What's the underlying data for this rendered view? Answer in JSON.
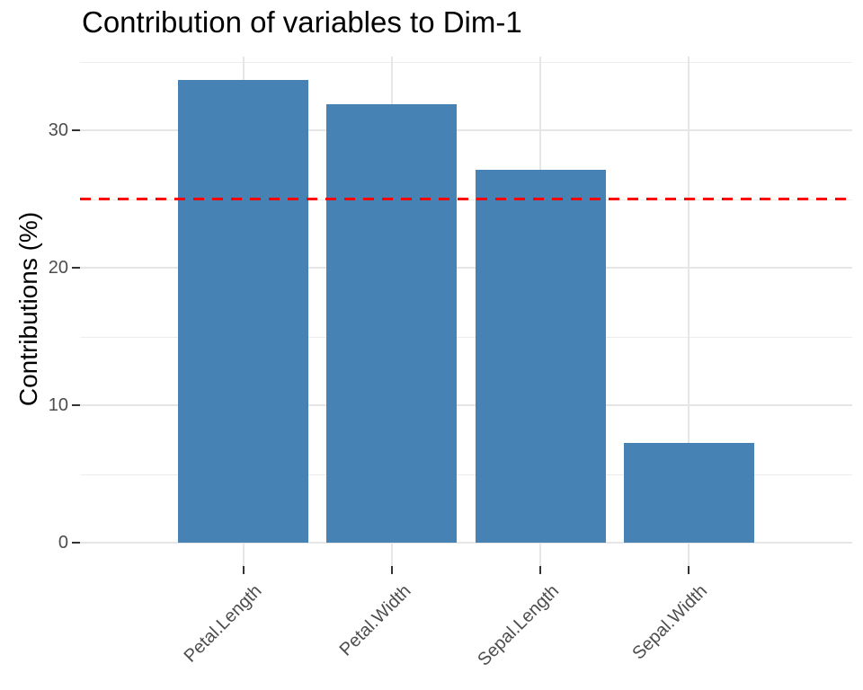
{
  "chart_data": {
    "type": "bar",
    "title": "Contribution of variables to Dim-1",
    "xlabel": "",
    "ylabel": "Contributions (%)",
    "categories": [
      "Petal.Length",
      "Petal.Width",
      "Sepal.Length",
      "Sepal.Width"
    ],
    "values": [
      33.69,
      31.91,
      27.15,
      7.25
    ],
    "yticks": [
      0,
      10,
      20,
      30
    ],
    "ylim": [
      -1.68,
      35.37
    ],
    "grid": "on",
    "legend": "none",
    "reference_line": {
      "value": 25,
      "style": "dashed",
      "color": "#FF0000"
    },
    "colors": {
      "bar_fill": "#4682B4",
      "grid_major": "#E6E6E6",
      "grid_minor": "#EDEDED",
      "tick_mark": "#333333",
      "tick_label": "#4D4D4D",
      "title_text": "#000000"
    }
  }
}
